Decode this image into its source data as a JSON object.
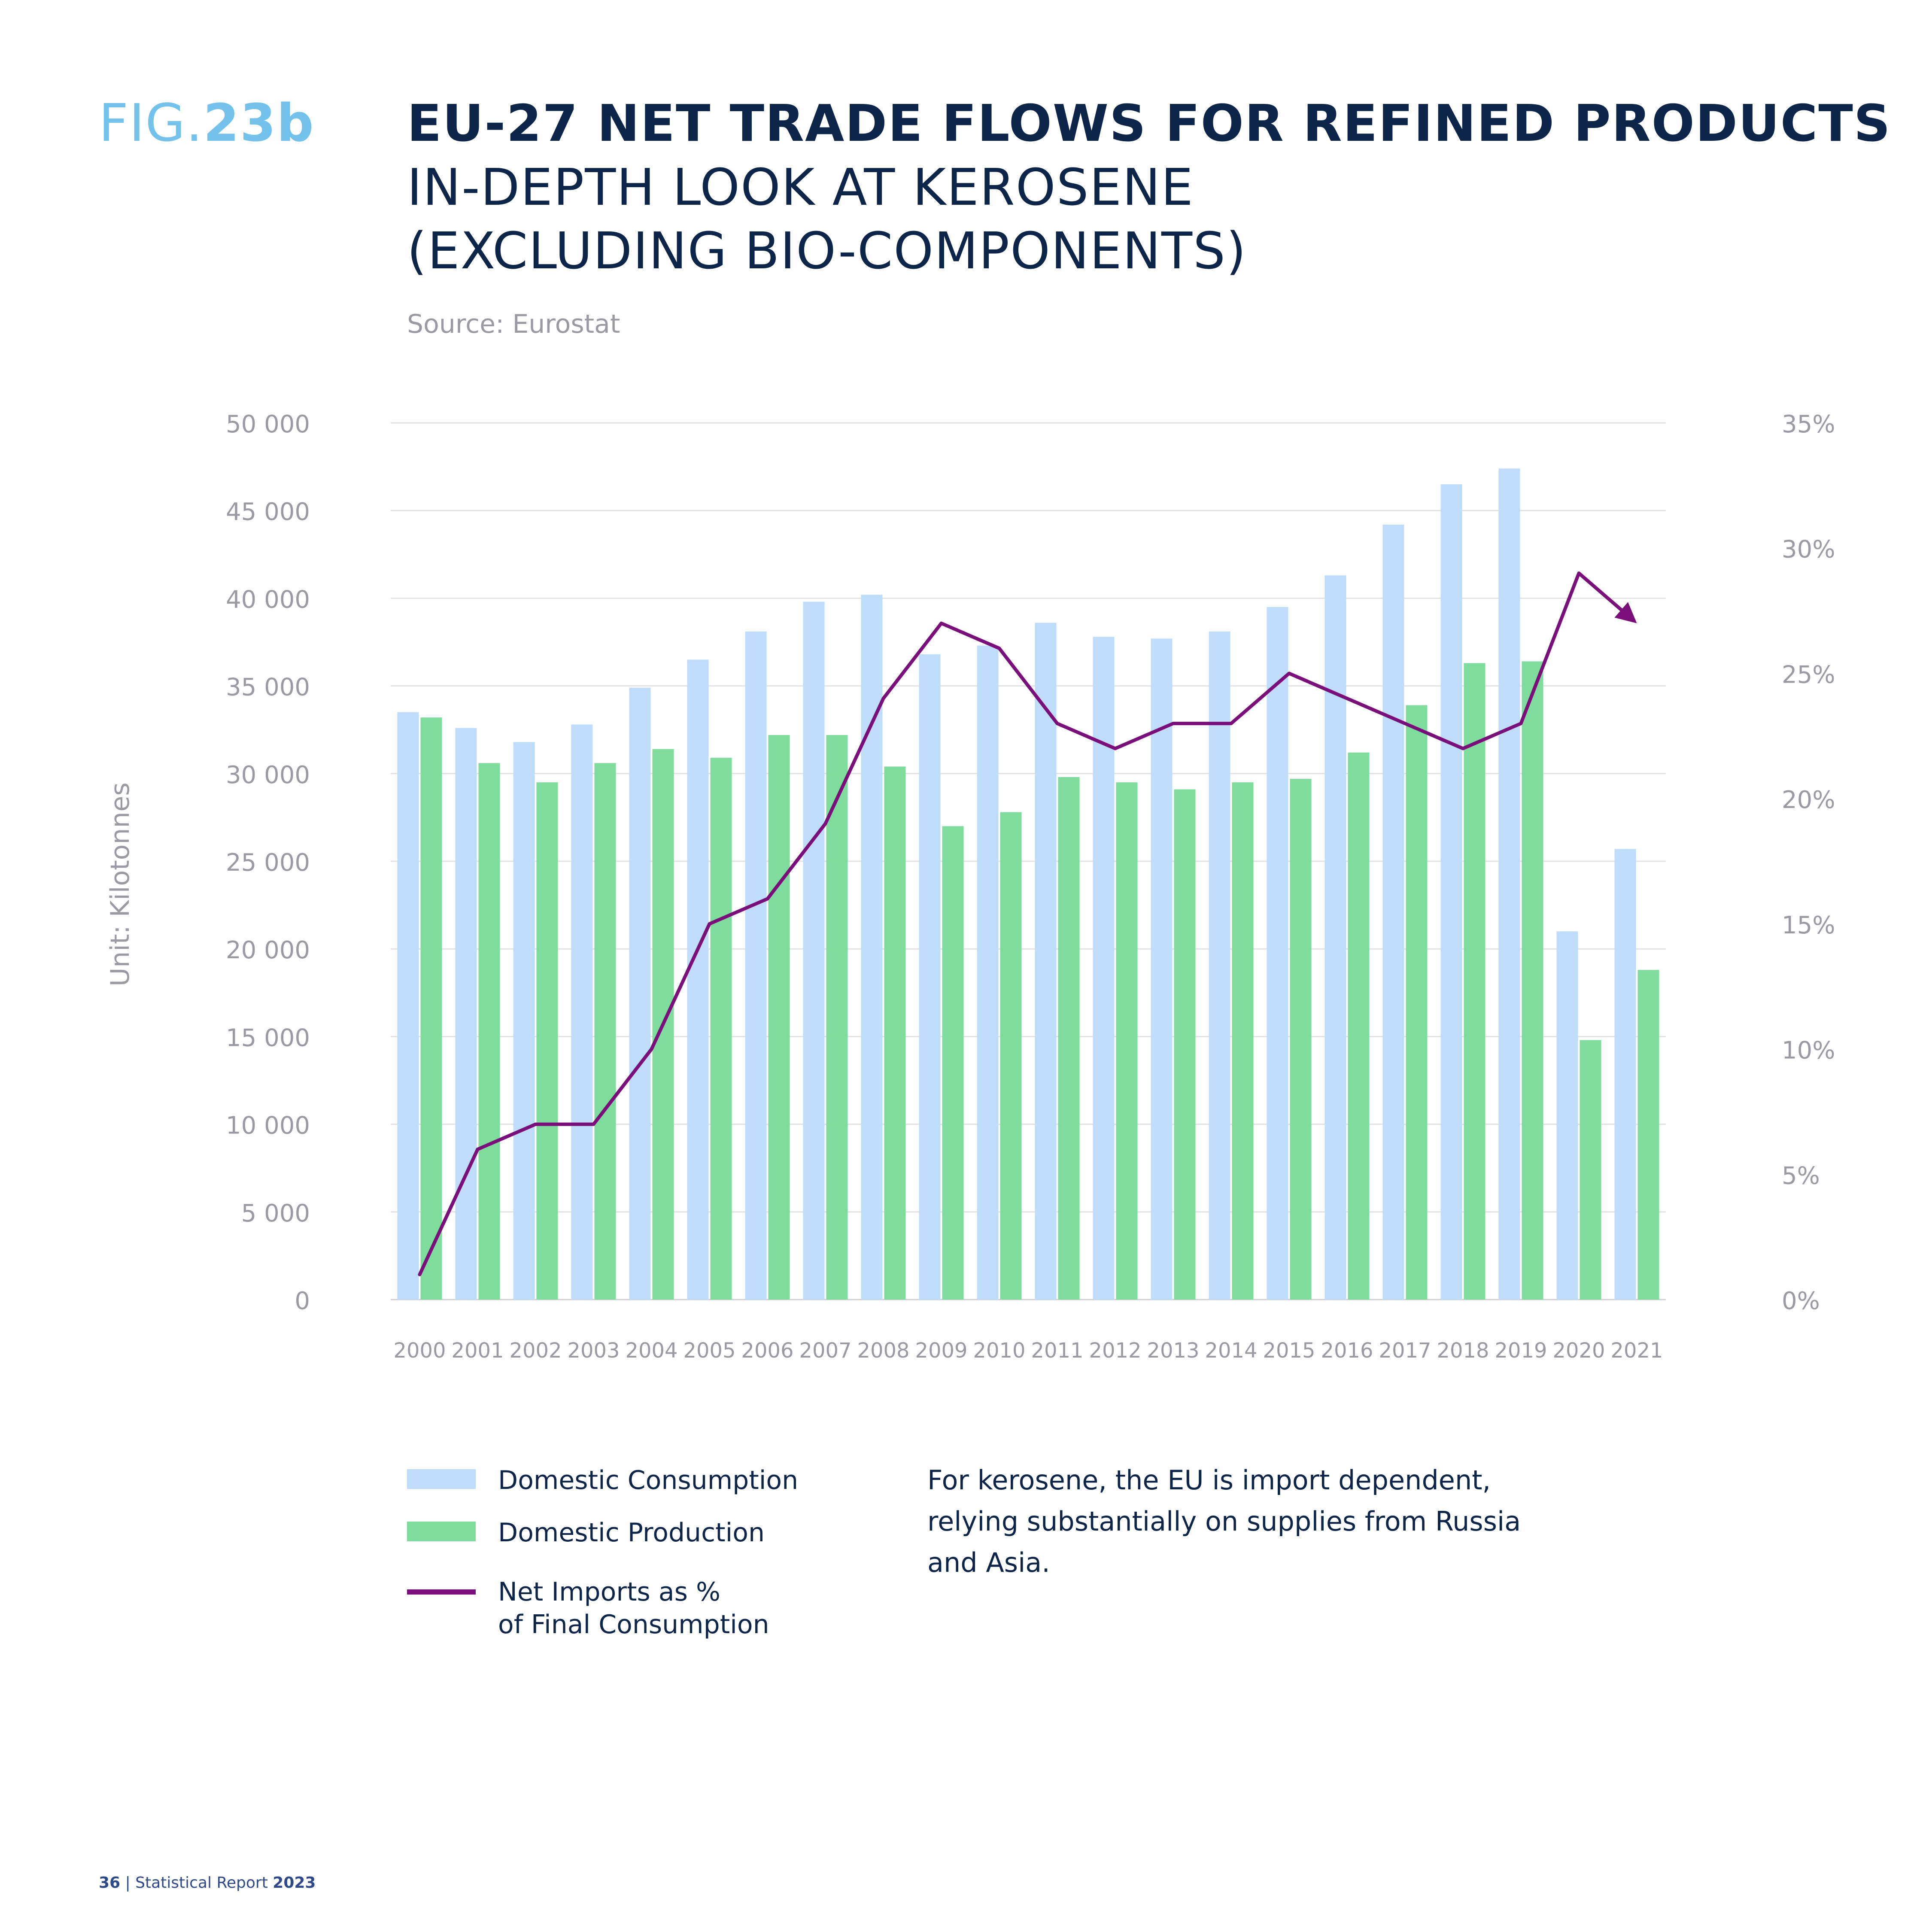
{
  "figure": {
    "label_prefix": "FIG.",
    "label_number": "23b",
    "title": "EU-27 NET TRADE FLOWS FOR REFINED PRODUCTS",
    "subtitle": "IN-DEPTH LOOK AT KEROSENE (EXCLUDING BIO-COMPONENTS)",
    "source": "Source: Eurostat"
  },
  "chart_data": {
    "type": "bar",
    "categories": [
      "2000",
      "2001",
      "2002",
      "2003",
      "2004",
      "2005",
      "2006",
      "2007",
      "2008",
      "2009",
      "2010",
      "2011",
      "2012",
      "2013",
      "2014",
      "2015",
      "2016",
      "2017",
      "2018",
      "2019",
      "2020",
      "2021"
    ],
    "series": [
      {
        "name": "Domestic Consumption",
        "type": "bar",
        "axis": "left",
        "color": "#bfdcfb",
        "values": [
          33500,
          32600,
          31800,
          32800,
          34900,
          36500,
          38100,
          39800,
          40200,
          36800,
          37300,
          38600,
          37800,
          37700,
          38100,
          39500,
          41300,
          44200,
          46500,
          47400,
          21000,
          25700
        ]
      },
      {
        "name": "Domestic Production",
        "type": "bar",
        "axis": "left",
        "color": "#7fdc9d",
        "values": [
          33200,
          30600,
          29500,
          30600,
          31400,
          30900,
          32200,
          32200,
          30400,
          27000,
          27800,
          29800,
          29500,
          29100,
          29500,
          29700,
          31200,
          33900,
          36300,
          36400,
          14800,
          18800
        ]
      },
      {
        "name": "Net Imports as % of Final Consumption",
        "type": "line",
        "axis": "right",
        "color": "#7a0e7a",
        "values": [
          1,
          6,
          7,
          7,
          10,
          15,
          16,
          19,
          24,
          27,
          26,
          23,
          22,
          23,
          23,
          25,
          24,
          23,
          22,
          23,
          29,
          27
        ]
      }
    ],
    "y_left": {
      "label": "Unit: Kilotonnes",
      "min": 0,
      "max": 50000,
      "ticks": [
        0,
        5000,
        10000,
        15000,
        20000,
        25000,
        30000,
        35000,
        40000,
        45000,
        50000
      ],
      "tick_labels": [
        "0",
        "5 000",
        "10 000",
        "15 000",
        "20 000",
        "25 000",
        "30 000",
        "35 000",
        "40 000",
        "45 000",
        "50 000"
      ]
    },
    "y_right": {
      "min": 0,
      "max": 35,
      "ticks": [
        0,
        5,
        10,
        15,
        20,
        25,
        30,
        35
      ],
      "tick_labels": [
        "0%",
        "5%",
        "10%",
        "15%",
        "20%",
        "25%",
        "30%",
        "35%"
      ]
    },
    "grid": true,
    "legend_position": "bottom-left"
  },
  "legend": {
    "consumption": "Domestic Consumption",
    "production": "Domestic Production",
    "net_imports_line1": "Net Imports as %",
    "net_imports_line2": "of Final Consumption"
  },
  "note": "For kerosene, the EU is import dependent, relying substantially on supplies from Russia and Asia.",
  "footer": {
    "page": "36",
    "separator": "|",
    "report": "Statistical Report",
    "year": "2023"
  },
  "colors": {
    "consumption": "#bfdcfb",
    "production": "#7fdc9d",
    "net_imports": "#7a0e7a",
    "title": "#0d2548",
    "fig_label": "#73c2ec"
  }
}
